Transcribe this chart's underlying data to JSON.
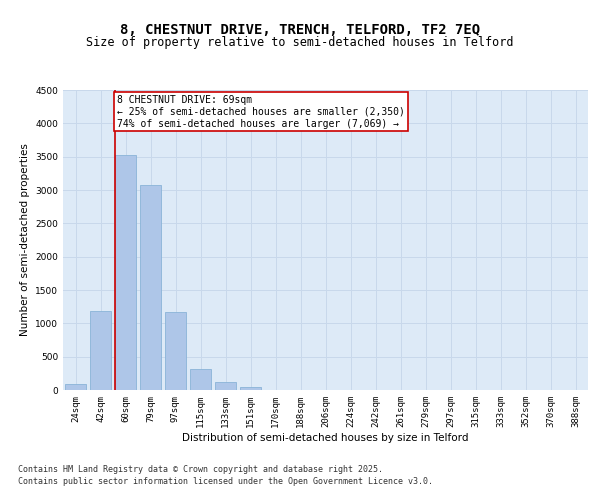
{
  "title_line1": "8, CHESTNUT DRIVE, TRENCH, TELFORD, TF2 7EQ",
  "title_line2": "Size of property relative to semi-detached houses in Telford",
  "xlabel": "Distribution of semi-detached houses by size in Telford",
  "ylabel": "Number of semi-detached properties",
  "categories": [
    "24sqm",
    "42sqm",
    "60sqm",
    "79sqm",
    "97sqm",
    "115sqm",
    "133sqm",
    "151sqm",
    "170sqm",
    "188sqm",
    "206sqm",
    "224sqm",
    "242sqm",
    "261sqm",
    "279sqm",
    "297sqm",
    "315sqm",
    "333sqm",
    "352sqm",
    "370sqm",
    "388sqm"
  ],
  "values": [
    90,
    1190,
    3530,
    3080,
    1170,
    310,
    120,
    50,
    0,
    0,
    0,
    0,
    0,
    0,
    0,
    0,
    0,
    0,
    0,
    0,
    0
  ],
  "bar_color": "#aec6e8",
  "bar_edge_color": "#8ab4d8",
  "vline_color": "#cc0000",
  "ylim": [
    0,
    4500
  ],
  "yticks": [
    0,
    500,
    1000,
    1500,
    2000,
    2500,
    3000,
    3500,
    4000,
    4500
  ],
  "grid_color": "#c8d8eb",
  "background_color": "#ddeaf7",
  "annotation_title": "8 CHESTNUT DRIVE: 69sqm",
  "annotation_line1": "← 25% of semi-detached houses are smaller (2,350)",
  "annotation_line2": "74% of semi-detached houses are larger (7,069) →",
  "annotation_box_color": "#ffffff",
  "annotation_box_edge": "#cc0000",
  "footer_line1": "Contains HM Land Registry data © Crown copyright and database right 2025.",
  "footer_line2": "Contains public sector information licensed under the Open Government Licence v3.0.",
  "title_fontsize": 10,
  "subtitle_fontsize": 8.5,
  "axis_label_fontsize": 7.5,
  "tick_fontsize": 6.5,
  "annotation_fontsize": 7,
  "footer_fontsize": 6
}
